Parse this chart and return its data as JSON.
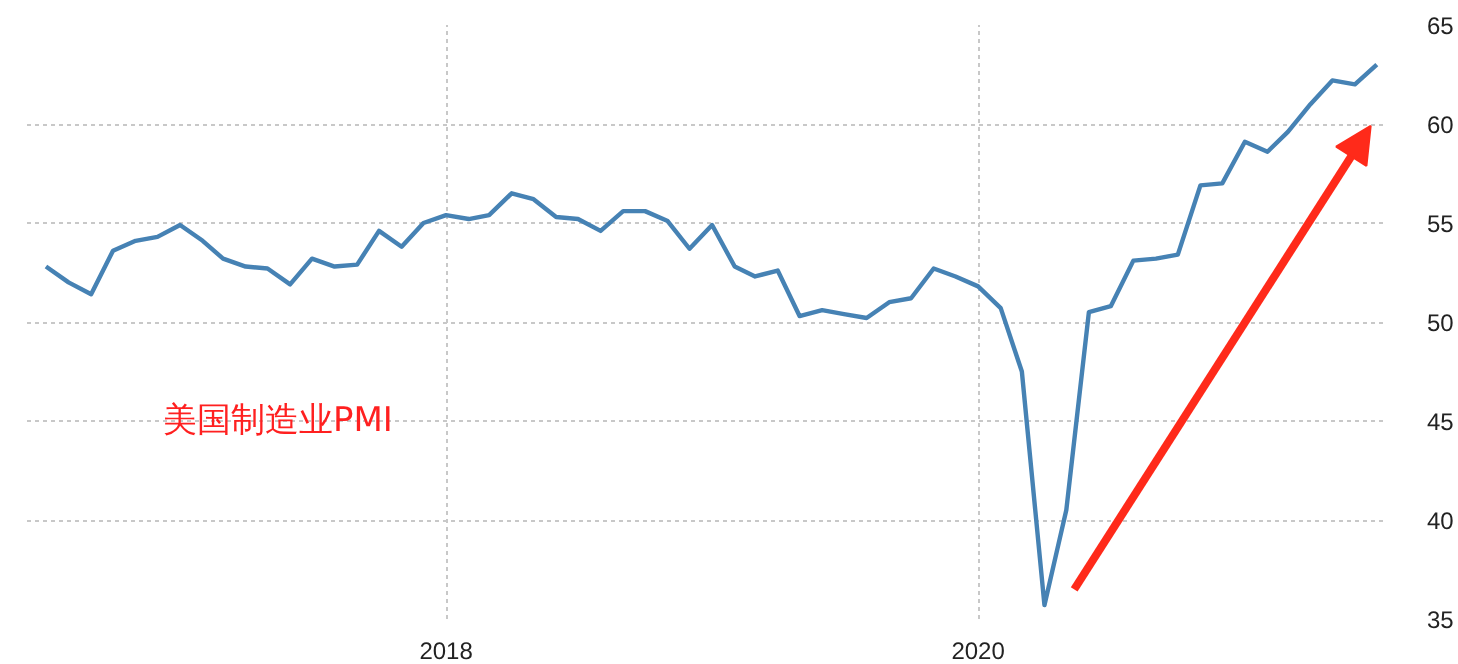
{
  "chart_data": {
    "type": "line",
    "x": [
      "2016-07",
      "2016-08",
      "2016-09",
      "2016-10",
      "2016-11",
      "2016-12",
      "2017-01",
      "2017-02",
      "2017-03",
      "2017-04",
      "2017-05",
      "2017-06",
      "2017-07",
      "2017-08",
      "2017-09",
      "2017-10",
      "2017-11",
      "2017-12",
      "2018-01",
      "2018-02",
      "2018-03",
      "2018-04",
      "2018-05",
      "2018-06",
      "2018-07",
      "2018-08",
      "2018-09",
      "2018-10",
      "2018-11",
      "2018-12",
      "2019-01",
      "2019-02",
      "2019-03",
      "2019-04",
      "2019-05",
      "2019-06",
      "2019-07",
      "2019-08",
      "2019-09",
      "2019-10",
      "2019-11",
      "2019-12",
      "2020-01",
      "2020-02",
      "2020-03",
      "2020-04",
      "2020-05",
      "2020-06",
      "2020-07",
      "2020-08",
      "2020-09",
      "2020-10",
      "2020-11",
      "2020-12",
      "2021-01",
      "2021-02",
      "2021-03",
      "2021-04",
      "2021-05",
      "2021-06",
      "2021-07"
    ],
    "series": [
      {
        "color": "#4682b4",
        "values": [
          52.8,
          52.0,
          51.4,
          53.6,
          54.1,
          54.3,
          54.9,
          54.1,
          53.2,
          52.8,
          52.7,
          51.9,
          53.2,
          52.8,
          52.9,
          54.6,
          53.8,
          55.0,
          55.4,
          55.2,
          55.4,
          56.5,
          56.2,
          55.3,
          55.2,
          54.6,
          55.6,
          55.6,
          55.1,
          53.7,
          54.9,
          52.8,
          52.3,
          52.6,
          50.3,
          50.6,
          50.4,
          50.2,
          51.0,
          51.2,
          52.7,
          52.3,
          51.8,
          50.7,
          47.5,
          35.7,
          40.5,
          50.5,
          50.8,
          53.1,
          53.2,
          53.4,
          56.9,
          57.0,
          59.1,
          58.6,
          59.6,
          61.0,
          62.2,
          62.0,
          63.0
        ]
      }
    ],
    "xlim": [
      "2016-06-05",
      "2021-07-15"
    ],
    "xticks": [
      "2018",
      "2020"
    ],
    "ylim": [
      35,
      65
    ],
    "yticks": [
      35,
      40,
      45,
      50,
      55,
      60,
      65
    ],
    "grid": true,
    "line_style": "solid",
    "marker": "none",
    "annotations": [
      "美国制造业PMI"
    ]
  }
}
